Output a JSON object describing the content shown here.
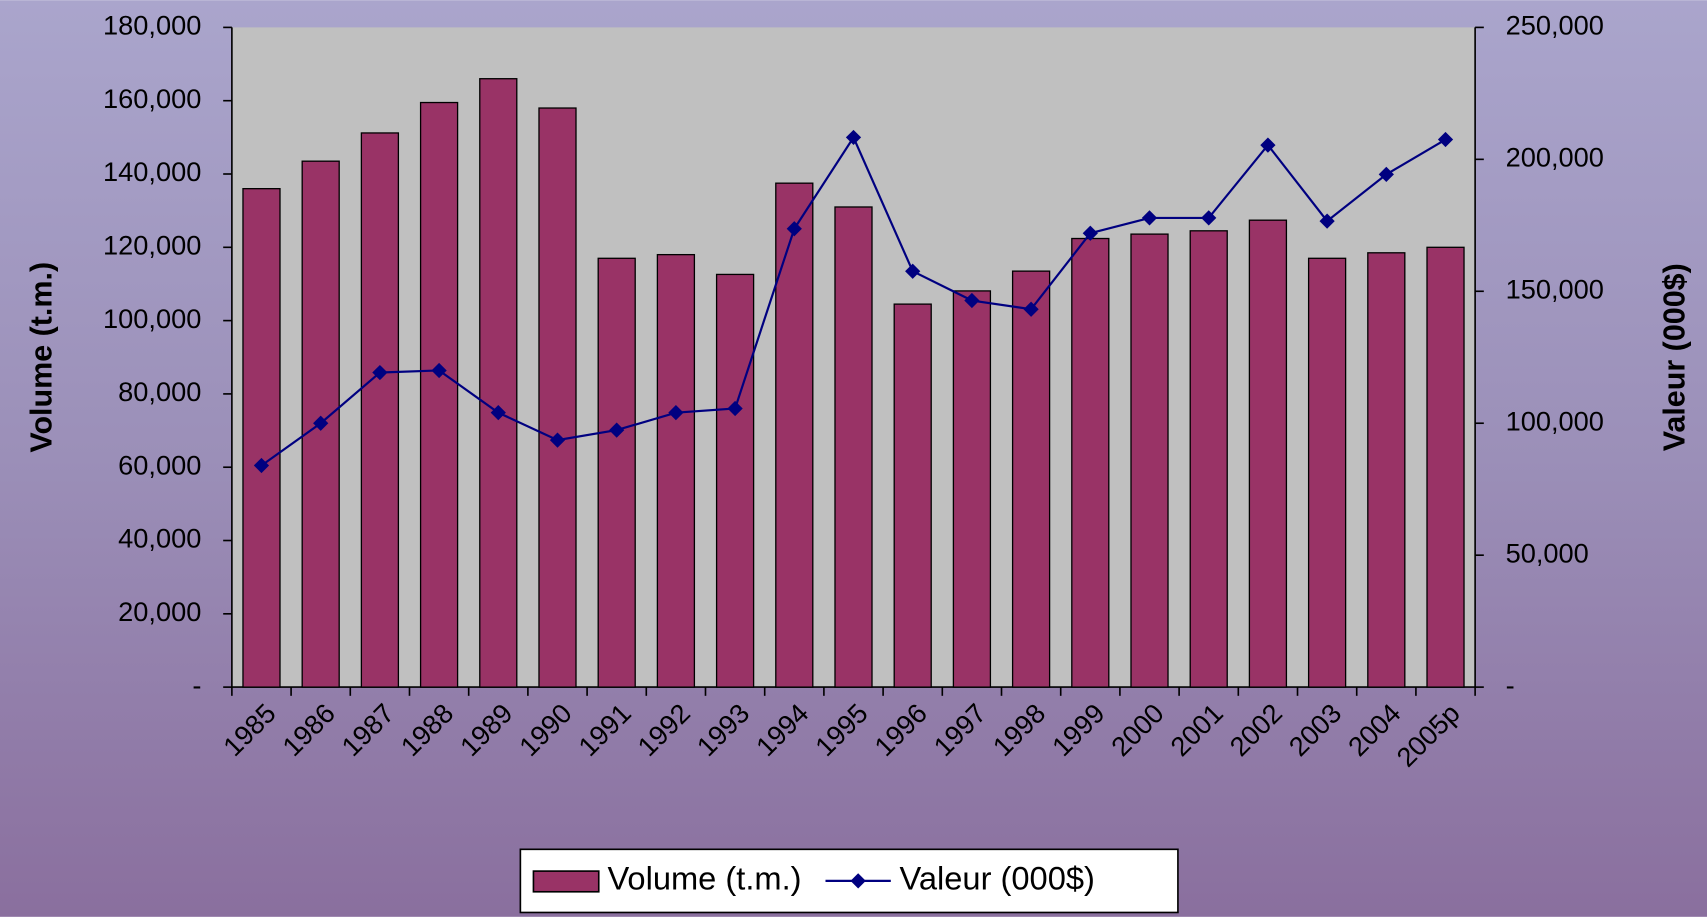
{
  "chart_data": {
    "type": "bar",
    "categories": [
      "1985",
      "1986",
      "1987",
      "1988",
      "1989",
      "1990",
      "1991",
      "1992",
      "1993",
      "1994",
      "1995",
      "1996",
      "1997",
      "1998",
      "1999",
      "2000",
      "2001",
      "2002",
      "2003",
      "2004",
      "2005p"
    ],
    "y_label": "Volume (t.m.)",
    "y2_label": "Valeur (000$)",
    "series": [
      {
        "name": "Volume (t.m.)",
        "type": "bar",
        "color": "#993366",
        "values": [
          136000,
          143500,
          151200,
          159500,
          166000,
          158000,
          117000,
          118000,
          112600,
          137500,
          131000,
          104500,
          108100,
          113500,
          122400,
          123600,
          124500,
          127400,
          117000,
          118500,
          120000
        ]
      },
      {
        "name": "Valeur (000$)",
        "type": "line",
        "axis": "y2",
        "color": "#000080",
        "values": [
          84000,
          100000,
          119200,
          120000,
          104000,
          93600,
          97400,
          104000,
          105600,
          173700,
          208300,
          157600,
          146500,
          143200,
          172000,
          177800,
          177800,
          205400,
          176600,
          194300,
          207500
        ]
      }
    ],
    "ylim": [
      0,
      180000
    ],
    "yticks": [
      {
        "value": 0,
        "label": "-"
      },
      {
        "value": 20000,
        "label": "20,000"
      },
      {
        "value": 40000,
        "label": "40,000"
      },
      {
        "value": 60000,
        "label": "60,000"
      },
      {
        "value": 80000,
        "label": "80,000"
      },
      {
        "value": 100000,
        "label": "100,000"
      },
      {
        "value": 120000,
        "label": "120,000"
      },
      {
        "value": 140000,
        "label": "140,000"
      },
      {
        "value": 160000,
        "label": "160,000"
      },
      {
        "value": 180000,
        "label": "180,000"
      }
    ],
    "y2lim": [
      0,
      250000
    ],
    "y2ticks": [
      {
        "value": 0,
        "label": "-"
      },
      {
        "value": 50000,
        "label": "50,000"
      },
      {
        "value": 100000,
        "label": "100,000"
      },
      {
        "value": 150000,
        "label": "150,000"
      },
      {
        "value": 200000,
        "label": "200,000"
      },
      {
        "value": 250000,
        "label": "250,000"
      }
    ],
    "legend": "bottom"
  }
}
